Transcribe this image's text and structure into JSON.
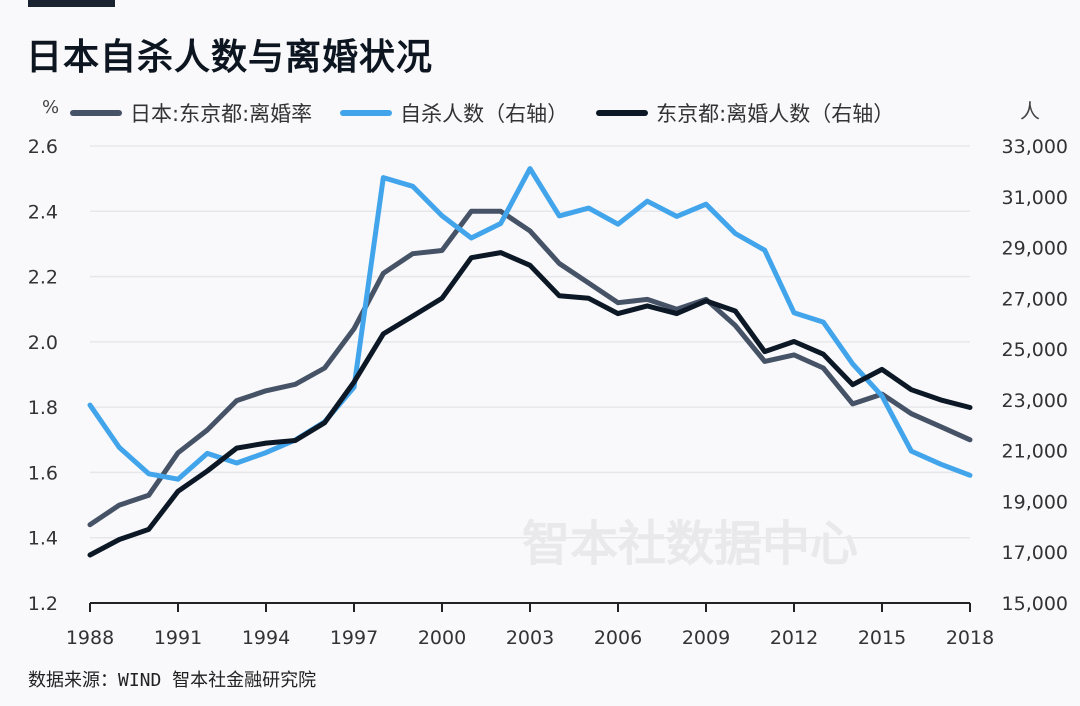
{
  "header": {
    "title": "日本自杀人数与离婚状况"
  },
  "source": "数据来源：WIND 智本社金融研究院",
  "watermark": "智本社数据中心",
  "chart_data": {
    "type": "line",
    "title": "日本自杀人数与离婚状况",
    "left_unit": "%",
    "right_unit": "人",
    "x": [
      1988,
      1989,
      1990,
      1991,
      1992,
      1993,
      1994,
      1995,
      1996,
      1997,
      1998,
      1999,
      2000,
      2001,
      2002,
      2003,
      2004,
      2005,
      2006,
      2007,
      2008,
      2009,
      2010,
      2011,
      2012,
      2013,
      2014,
      2015,
      2016,
      2017,
      2018
    ],
    "x_ticks": [
      "1988",
      "1991",
      "1994",
      "1997",
      "2000",
      "2003",
      "2006",
      "2009",
      "2012",
      "2015",
      "2018"
    ],
    "ylim_left": [
      1.2,
      2.6
    ],
    "y_ticks_left": [
      "2.6",
      "2.4",
      "2.2",
      "2.0",
      "1.8",
      "1.6",
      "1.4",
      "1.2"
    ],
    "ylim_right": [
      15000,
      33000
    ],
    "y_ticks_right": [
      "33,000",
      "31,000",
      "29,000",
      "27,000",
      "25,000",
      "23,000",
      "21,000",
      "19,000",
      "17,000",
      "15,000"
    ],
    "grid": true,
    "legend_position": "top",
    "series": [
      {
        "name": "日本:东京都:离婚率",
        "axis": "left",
        "color": "#465367",
        "values": [
          1.44,
          1.5,
          1.53,
          1.66,
          1.73,
          1.82,
          1.85,
          1.87,
          1.92,
          2.04,
          2.21,
          2.27,
          2.28,
          2.4,
          2.4,
          2.34,
          2.24,
          2.18,
          2.12,
          2.13,
          2.1,
          2.13,
          2.05,
          1.94,
          1.96,
          1.92,
          1.81,
          1.84,
          1.78,
          1.74,
          1.7
        ]
      },
      {
        "name": "自杀人数（右轴）",
        "axis": "right",
        "color": "#42a5ec",
        "values": [
          22795,
          21125,
          20088,
          19875,
          20893,
          20516,
          20923,
          21420,
          22138,
          23494,
          31755,
          31413,
          30251,
          29375,
          29949,
          32109,
          30247,
          30553,
          29921,
          30827,
          30229,
          30707,
          29554,
          28896,
          26433,
          26063,
          24417,
          23152,
          20984,
          20465,
          20031
        ]
      },
      {
        "name": "东京都:离婚人数（右轴）",
        "axis": "right",
        "color": "#0c1825",
        "values": [
          16890,
          17500,
          17900,
          19400,
          20200,
          21100,
          21300,
          21400,
          22100,
          23700,
          25600,
          26300,
          27000,
          28600,
          28800,
          28300,
          27100,
          27000,
          26400,
          26700,
          26400,
          26900,
          26500,
          24900,
          25300,
          24800,
          23600,
          24200,
          23400,
          23000,
          22700
        ]
      }
    ]
  }
}
